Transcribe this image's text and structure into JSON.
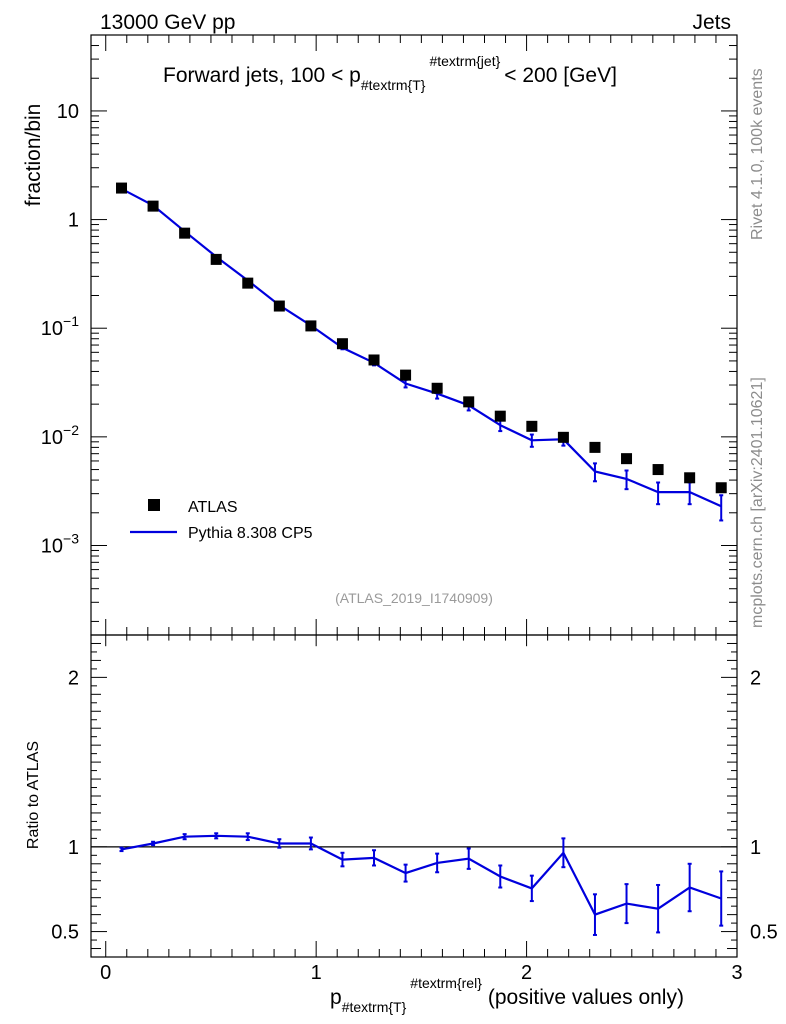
{
  "header": {
    "left_label": "13000 GeV pp",
    "right_label": "Jets"
  },
  "side_labels": {
    "rivet": "Rivet 4.1.0,  100k events",
    "mcplots": "mcplots.cern.ch [arXiv:2401.10621]"
  },
  "chart_data": {
    "type": "line",
    "title_parts": {
      "before": "Forward jets, 100 < p",
      "sub": "#textrm{T}",
      "sup": "#textrm{jet}",
      "after": "< 200 [GeV]"
    },
    "analysis_tag": "(ATLAS_2019_I1740909)",
    "xlabel_parts": {
      "main": "p",
      "sub": "#textrm{T}",
      "sup": "#textrm{rel}",
      "after": "(positive values only)"
    },
    "ylabel_main": "fraction/bin",
    "ylabel_ratio": "Ratio to ATLAS",
    "xlim": [
      -0.07,
      3.0
    ],
    "ylim_main": [
      0.00015,
      50
    ],
    "ylim_ratio": [
      0.35,
      2.25
    ],
    "x_ticks": [
      0,
      1,
      2,
      3
    ],
    "x_tick_labels": [
      "0",
      "1",
      "2",
      "3"
    ],
    "y_ticks_main": [
      10,
      1,
      0.1,
      0.01,
      0.001
    ],
    "y_tick_labels_main": [
      {
        "base": "10",
        "exp": ""
      },
      {
        "base": "1",
        "exp": ""
      },
      {
        "base": "10",
        "exp": "−1"
      },
      {
        "base": "10",
        "exp": "−2"
      },
      {
        "base": "10",
        "exp": "−3"
      }
    ],
    "y_ticks_ratio": [
      2,
      1,
      0.5
    ],
    "y_tick_labels_ratio": [
      "2",
      "1",
      "0.5"
    ],
    "x": [
      0.075,
      0.225,
      0.375,
      0.525,
      0.675,
      0.825,
      0.975,
      1.125,
      1.275,
      1.425,
      1.575,
      1.725,
      1.875,
      2.025,
      2.175,
      2.325,
      2.475,
      2.625,
      2.775,
      2.925
    ],
    "legend": [
      "ATLAS",
      "Pythia 8.308 CP5"
    ],
    "series": [
      {
        "name": "ATLAS",
        "values": [
          1.95,
          1.33,
          0.75,
          0.43,
          0.26,
          0.16,
          0.105,
          0.072,
          0.051,
          0.037,
          0.028,
          0.021,
          0.0155,
          0.0125,
          0.0099,
          0.008,
          0.0063,
          0.005,
          0.0042,
          0.0034
        ]
      },
      {
        "name": "Pythia 8.308 CP5",
        "values": [
          1.92,
          1.35,
          0.78,
          0.455,
          0.275,
          0.163,
          0.106,
          0.066,
          0.048,
          0.031,
          0.025,
          0.0195,
          0.0128,
          0.0093,
          0.0095,
          0.0048,
          0.0041,
          0.0031,
          0.0031,
          0.0023
        ],
        "err_lo": [
          0.02,
          0.012,
          0.008,
          0.004,
          0.003,
          0.0025,
          0.002,
          0.002,
          0.0025,
          0.0025,
          0.0025,
          0.002,
          0.0015,
          0.0012,
          0.0012,
          0.0009,
          0.0008,
          0.0007,
          0.0007,
          0.0006
        ],
        "err_hi": [
          0.02,
          0.012,
          0.008,
          0.004,
          0.003,
          0.0025,
          0.002,
          0.002,
          0.0025,
          0.0025,
          0.0025,
          0.002,
          0.0015,
          0.0012,
          0.0012,
          0.0009,
          0.0008,
          0.0007,
          0.0007,
          0.0006
        ]
      }
    ],
    "ratio": {
      "values": [
        0.985,
        1.02,
        1.06,
        1.065,
        1.06,
        1.02,
        1.02,
        0.925,
        0.935,
        0.845,
        0.905,
        0.93,
        0.825,
        0.755,
        0.965,
        0.6,
        0.665,
        0.635,
        0.76,
        0.695
      ],
      "err": [
        0.01,
        0.01,
        0.015,
        0.015,
        0.02,
        0.025,
        0.035,
        0.04,
        0.045,
        0.05,
        0.055,
        0.06,
        0.065,
        0.075,
        0.085,
        0.12,
        0.115,
        0.14,
        0.14,
        0.16
      ]
    },
    "colors": {
      "data": "#000000",
      "mc": "#0000dd"
    }
  }
}
